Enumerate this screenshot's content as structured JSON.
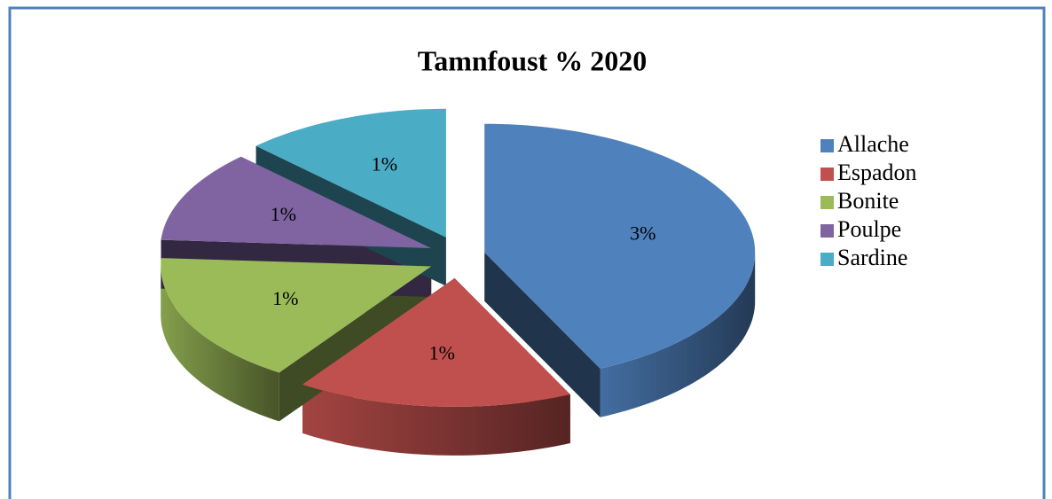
{
  "chart_data": {
    "type": "pie",
    "title": "Tamnfoust % 2020",
    "categories": [
      "Allache",
      "Espadon",
      "Bonite",
      "Poulpe",
      "Sardine"
    ],
    "values": [
      2.6,
      1.0,
      1.0,
      0.7,
      0.75
    ],
    "value_labels": [
      "3%",
      "1%",
      "1%",
      "1%",
      "1%"
    ],
    "colors": [
      "#4f81bd",
      "#c0504d",
      "#9bbb59",
      "#8064a2",
      "#4bacc6"
    ],
    "legend": "right"
  }
}
